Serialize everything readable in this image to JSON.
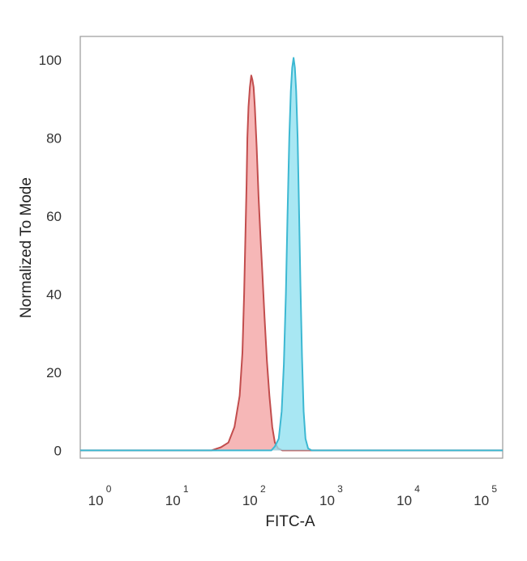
{
  "chart_data": {
    "type": "area",
    "xlabel": "FITC-A",
    "ylabel": "Normalized To Mode",
    "x_scale": "log",
    "xlim": [
      0.6,
      180000
    ],
    "ylim": [
      -2,
      106
    ],
    "x_ticks": [
      {
        "base": "10",
        "exp": "0",
        "value": 1
      },
      {
        "base": "10",
        "exp": "1",
        "value": 10
      },
      {
        "base": "10",
        "exp": "2",
        "value": 100
      },
      {
        "base": "10",
        "exp": "3",
        "value": 1000
      },
      {
        "base": "10",
        "exp": "4",
        "value": 10000
      },
      {
        "base": "10",
        "exp": "5",
        "value": 100000
      }
    ],
    "y_ticks": [
      0,
      20,
      40,
      60,
      80,
      100
    ],
    "grid": false,
    "legend": "none",
    "series": [
      {
        "fill": "#f4a3a3",
        "stroke": "#c24d4d",
        "points": [
          [
            0.6,
            0
          ],
          [
            30,
            0
          ],
          [
            40,
            0.8
          ],
          [
            50,
            2
          ],
          [
            60,
            6
          ],
          [
            70,
            14
          ],
          [
            76,
            25
          ],
          [
            80,
            40
          ],
          [
            83,
            55
          ],
          [
            86,
            68
          ],
          [
            88,
            80
          ],
          [
            91,
            88
          ],
          [
            95,
            93
          ],
          [
            99,
            96
          ],
          [
            102,
            95
          ],
          [
            106,
            93
          ],
          [
            110,
            88
          ],
          [
            116,
            78
          ],
          [
            123,
            65
          ],
          [
            130,
            55
          ],
          [
            138,
            45
          ],
          [
            147,
            34
          ],
          [
            158,
            23
          ],
          [
            170,
            14
          ],
          [
            185,
            6
          ],
          [
            200,
            2
          ],
          [
            220,
            0.5
          ],
          [
            250,
            0
          ],
          [
            180000,
            0
          ]
        ]
      },
      {
        "fill": "#8fe0f0",
        "stroke": "#3cb8d2",
        "points": [
          [
            0.6,
            0
          ],
          [
            180,
            0
          ],
          [
            200,
            1
          ],
          [
            225,
            3
          ],
          [
            245,
            10
          ],
          [
            262,
            22
          ],
          [
            278,
            40
          ],
          [
            292,
            60
          ],
          [
            308,
            80
          ],
          [
            322,
            92
          ],
          [
            336,
            98
          ],
          [
            350,
            100.5
          ],
          [
            364,
            98
          ],
          [
            378,
            92
          ],
          [
            395,
            80
          ],
          [
            412,
            62
          ],
          [
            430,
            42
          ],
          [
            450,
            24
          ],
          [
            472,
            10
          ],
          [
            500,
            3
          ],
          [
            540,
            0.5
          ],
          [
            600,
            0
          ],
          [
            180000,
            0
          ]
        ]
      }
    ]
  }
}
